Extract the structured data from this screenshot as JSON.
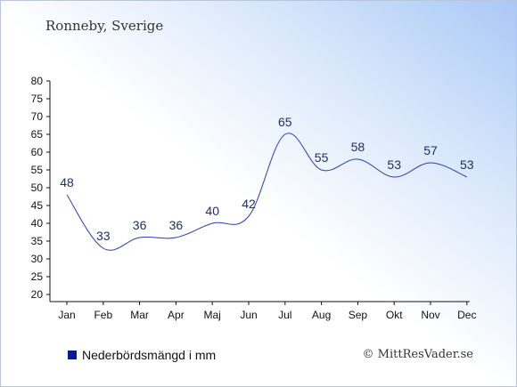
{
  "header": {
    "location": "Ronneby, Sverige"
  },
  "legend": {
    "label": "Nederbördsmängd i mm"
  },
  "footer": {
    "copyright": "© MittResVader.se"
  },
  "colors": {
    "line": "#2b3fb0",
    "legend_swatch": "#0a1a9c",
    "labels": "#1e3060"
  },
  "chart_data": {
    "type": "line",
    "categories": [
      "Jan",
      "Feb",
      "Mar",
      "Apr",
      "Maj",
      "Jun",
      "Jul",
      "Aug",
      "Sep",
      "Okt",
      "Nov",
      "Dec"
    ],
    "series": [
      {
        "name": "Nederbördsmängd i mm",
        "values": [
          48,
          33,
          36,
          36,
          40,
          42,
          65,
          55,
          58,
          53,
          57,
          53
        ]
      }
    ],
    "data_labels": [
      "48",
      "33",
      "36",
      "36",
      "40",
      "42",
      "65",
      "55",
      "58",
      "53",
      "57",
      "53"
    ],
    "y_ticks": [
      "20",
      "25",
      "30",
      "35",
      "40",
      "45",
      "50",
      "55",
      "60",
      "65",
      "70",
      "75",
      "80"
    ],
    "ylim": [
      20,
      80
    ],
    "grid": false,
    "legend_position": "bottom-left"
  }
}
